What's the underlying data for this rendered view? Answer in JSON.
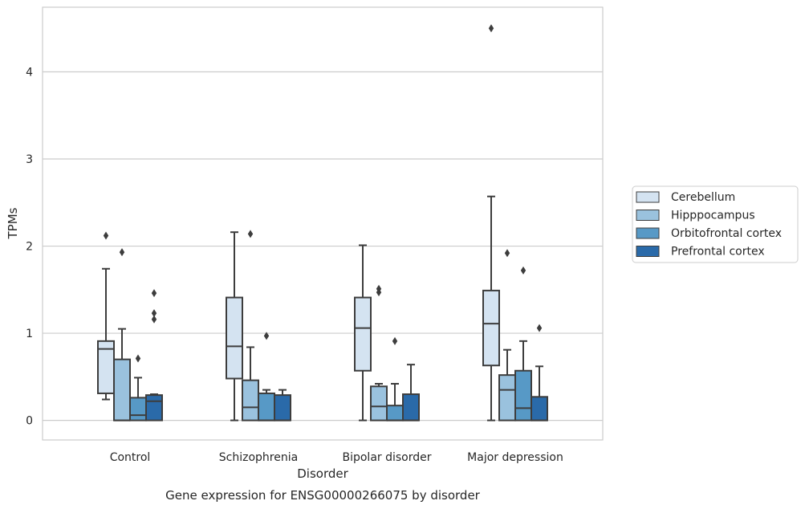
{
  "chart_data": {
    "type": "box",
    "title": "",
    "caption": "Gene expression for ENSG00000266075 by disorder",
    "xlabel": "Disorder",
    "ylabel": "TPMs",
    "ylim": [
      -0.22,
      4.75
    ],
    "yticks": [
      0,
      1,
      2,
      3,
      4
    ],
    "grid": "horizontal",
    "legend_placement": "right",
    "categories": [
      "Control",
      "Schizophrenia",
      "Bipolar disorder",
      "Major depression"
    ],
    "series": [
      {
        "name": "Cerebellum",
        "color": "#d4e3f1",
        "boxes": [
          {
            "whislo": 0.24,
            "q1": 0.31,
            "med": 0.82,
            "q3": 0.91,
            "whishi": 1.74,
            "fliers": [
              2.12
            ]
          },
          {
            "whislo": 0.0,
            "q1": 0.48,
            "med": 0.85,
            "q3": 1.41,
            "whishi": 2.16,
            "fliers": []
          },
          {
            "whislo": 0.0,
            "q1": 0.57,
            "med": 1.06,
            "q3": 1.41,
            "whishi": 2.01,
            "fliers": []
          },
          {
            "whislo": 0.0,
            "q1": 0.63,
            "med": 1.11,
            "q3": 1.49,
            "whishi": 2.57,
            "fliers": [
              4.5
            ]
          }
        ]
      },
      {
        "name": "Hipppocampus",
        "color": "#9ac2de",
        "boxes": [
          {
            "whislo": 0.0,
            "q1": 0.0,
            "med": 0.0,
            "q3": 0.7,
            "whishi": 1.05,
            "fliers": [
              1.93
            ]
          },
          {
            "whislo": 0.0,
            "q1": 0.0,
            "med": 0.15,
            "q3": 0.46,
            "whishi": 0.84,
            "fliers": [
              2.14
            ]
          },
          {
            "whislo": 0.0,
            "q1": 0.0,
            "med": 0.16,
            "q3": 0.39,
            "whishi": 0.42,
            "fliers": [
              1.47,
              1.51
            ]
          },
          {
            "whislo": 0.0,
            "q1": 0.0,
            "med": 0.35,
            "q3": 0.52,
            "whishi": 0.81,
            "fliers": [
              1.92
            ]
          }
        ]
      },
      {
        "name": "Orbitofrontal cortex",
        "color": "#5799c6",
        "boxes": [
          {
            "whislo": 0.0,
            "q1": 0.0,
            "med": 0.06,
            "q3": 0.26,
            "whishi": 0.49,
            "fliers": [
              0.71
            ]
          },
          {
            "whislo": 0.0,
            "q1": 0.0,
            "med": 0.0,
            "q3": 0.31,
            "whishi": 0.35,
            "fliers": [
              0.97
            ]
          },
          {
            "whislo": 0.0,
            "q1": 0.0,
            "med": 0.0,
            "q3": 0.17,
            "whishi": 0.42,
            "fliers": [
              0.91
            ]
          },
          {
            "whislo": 0.0,
            "q1": 0.0,
            "med": 0.14,
            "q3": 0.57,
            "whishi": 0.91,
            "fliers": [
              1.72
            ]
          }
        ]
      },
      {
        "name": "Prefrontal cortex",
        "color": "#2a6aa9",
        "boxes": [
          {
            "whislo": 0.0,
            "q1": 0.0,
            "med": 0.22,
            "q3": 0.29,
            "whishi": 0.3,
            "fliers": [
              1.16,
              1.23,
              1.46
            ]
          },
          {
            "whislo": 0.0,
            "q1": 0.0,
            "med": 0.0,
            "q3": 0.29,
            "whishi": 0.35,
            "fliers": []
          },
          {
            "whislo": 0.0,
            "q1": 0.0,
            "med": 0.0,
            "q3": 0.3,
            "whishi": 0.64,
            "fliers": []
          },
          {
            "whislo": 0.0,
            "q1": 0.0,
            "med": 0.0,
            "q3": 0.27,
            "whishi": 0.62,
            "fliers": [
              1.06
            ]
          }
        ]
      }
    ]
  }
}
